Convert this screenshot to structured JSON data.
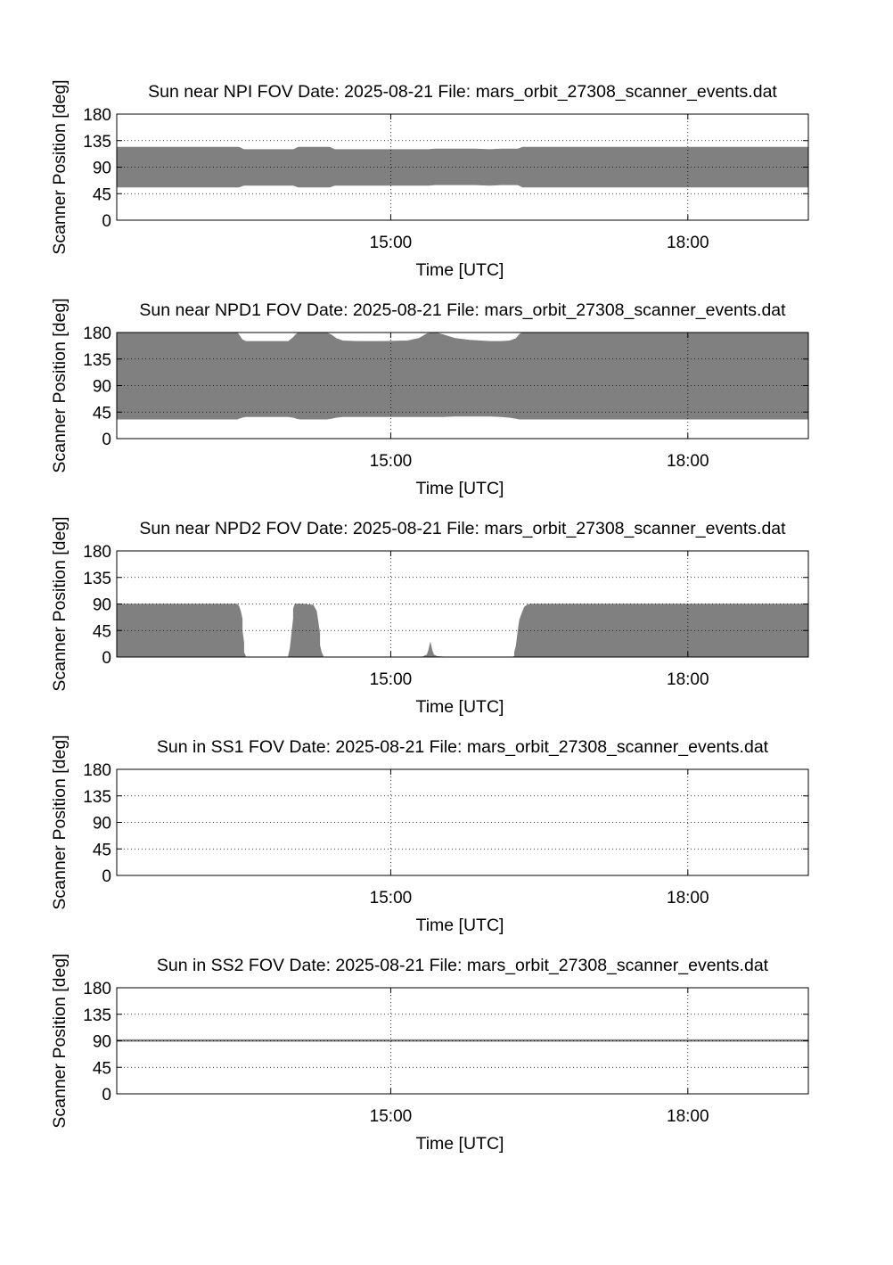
{
  "style": {
    "fill_color": "#808080",
    "axis_color": "#000000",
    "grid_color": "#000000",
    "background": "#ffffff"
  },
  "chart_data": [
    {
      "type": "area",
      "title": "Sun near NPI FOV   Date: 2025-08-21   File: mars_orbit_27308_scanner_events.dat",
      "xlabel": "Time [UTC]",
      "ylabel": "Scanner Position [deg]",
      "xlim": [
        "12:14",
        "19:13"
      ],
      "ylim": [
        0,
        180
      ],
      "yticks": [
        "0",
        "45",
        "90",
        "135",
        "180"
      ],
      "xticks": [
        {
          "label": "15:00",
          "value": "15:00"
        },
        {
          "label": "18:00",
          "value": "18:00"
        }
      ],
      "grid": true,
      "series": [
        {
          "x": [
            "12:14",
            "13:28",
            "13:31",
            "14:01",
            "14:04",
            "14:23",
            "14:26",
            "15:23",
            "15:27",
            "15:51",
            "16:00",
            "16:07",
            "16:17",
            "16:20",
            "19:13"
          ],
          "low": [
            56,
            56,
            59,
            59,
            56,
            56,
            59,
            59,
            60,
            60,
            59,
            60,
            60,
            56,
            56
          ],
          "high": [
            124,
            124,
            120,
            120,
            124,
            124,
            120,
            120,
            121,
            121,
            120,
            121,
            121,
            124,
            124
          ]
        }
      ]
    },
    {
      "type": "area",
      "title": "Sun near NPD1 FOV   Date: 2025-08-21   File: mars_orbit_27308_scanner_events.dat",
      "xlabel": "Time [UTC]",
      "ylabel": "Scanner Position [deg]",
      "xlim": [
        "12:14",
        "19:13"
      ],
      "ylim": [
        0,
        180
      ],
      "yticks": [
        "0",
        "45",
        "90",
        "135",
        "180"
      ],
      "xticks": [
        {
          "label": "15:00",
          "value": "15:00"
        },
        {
          "label": "18:00",
          "value": "18:00"
        }
      ],
      "grid": true,
      "series": [
        {
          "x": [
            "12:14",
            "13:27",
            "13:28",
            "13:30",
            "13:32",
            "13:58",
            "14:01",
            "14:03",
            "14:05",
            "14:07",
            "14:16",
            "14:21",
            "14:24",
            "14:27",
            "14:31",
            "14:40",
            "14:55",
            "15:10",
            "15:17",
            "15:22",
            "15:27",
            "15:32",
            "15:39",
            "15:48",
            "16:00",
            "16:07",
            "16:12",
            "16:16",
            "16:18",
            "16:20",
            "19:13"
          ],
          "low": [
            33,
            33,
            34,
            36,
            37,
            37,
            36,
            34,
            33,
            33,
            33,
            33,
            34,
            36,
            37,
            37,
            37,
            37,
            37,
            37,
            37,
            37,
            38,
            38,
            38,
            37,
            36,
            34,
            33,
            33,
            33
          ],
          "high": [
            180,
            180,
            176,
            168,
            165,
            165,
            172,
            178,
            180,
            180,
            180,
            180,
            176,
            170,
            166,
            165,
            165,
            166,
            170,
            178,
            180,
            176,
            170,
            167,
            165,
            165,
            166,
            170,
            177,
            180,
            180
          ]
        }
      ]
    },
    {
      "type": "area",
      "title": "Sun near NPD2 FOV   Date: 2025-08-21   File: mars_orbit_27308_scanner_events.dat",
      "xlabel": "Time [UTC]",
      "ylabel": "Scanner Position [deg]",
      "xlim": [
        "12:14",
        "19:13"
      ],
      "ylim": [
        0,
        180
      ],
      "yticks": [
        "0",
        "45",
        "90",
        "135",
        "180"
      ],
      "xticks": [
        {
          "label": "15:00",
          "value": "15:00"
        },
        {
          "label": "18:00",
          "value": "18:00"
        }
      ],
      "grid": true,
      "series": [
        {
          "x": [
            "12:14",
            "13:27",
            "13:28",
            "13:29",
            "13:30",
            "13:30",
            "13:31",
            "13:31",
            "13:32",
            "13:32",
            "13:58",
            "13:58",
            "13:59",
            "14:00",
            "14:01",
            "14:01",
            "14:02",
            "14:05",
            "14:07",
            "14:13",
            "14:15",
            "14:16",
            "14:17",
            "14:17",
            "14:18",
            "14:19",
            "14:19",
            "15:19",
            "15:22",
            "15:23",
            "15:24",
            "15:25",
            "15:26",
            "15:28",
            "15:34",
            "16:14",
            "16:15",
            "16:15",
            "16:16",
            "16:17",
            "16:18",
            "16:20",
            "16:21",
            "16:23",
            "16:25",
            "19:13"
          ],
          "low": [
            0,
            0,
            0,
            0,
            0,
            0,
            0,
            0,
            0,
            0,
            0,
            0,
            0,
            0,
            0,
            0,
            0,
            0,
            0,
            0,
            0,
            0,
            0,
            0,
            0,
            0,
            0,
            0,
            0,
            0,
            0,
            0,
            0,
            0,
            0,
            0,
            0,
            0,
            0,
            0,
            0,
            0,
            0,
            0,
            0,
            0
          ],
          "high": [
            90,
            90,
            86,
            78,
            65,
            45,
            25,
            8,
            2,
            0,
            0,
            2,
            15,
            40,
            65,
            82,
            90,
            90,
            90,
            88,
            78,
            60,
            40,
            20,
            8,
            2,
            0,
            0,
            4,
            12,
            25,
            12,
            4,
            1,
            0,
            0,
            2,
            8,
            20,
            42,
            63,
            78,
            85,
            89,
            90,
            90
          ]
        }
      ]
    },
    {
      "type": "area",
      "title": "Sun in SS1 FOV   Date: 2025-08-21   File: mars_orbit_27308_scanner_events.dat",
      "xlabel": "Time [UTC]",
      "ylabel": "Scanner Position [deg]",
      "xlim": [
        "12:14",
        "19:13"
      ],
      "ylim": [
        0,
        180
      ],
      "yticks": [
        "0",
        "45",
        "90",
        "135",
        "180"
      ],
      "xticks": [
        {
          "label": "15:00",
          "value": "15:00"
        },
        {
          "label": "18:00",
          "value": "18:00"
        }
      ],
      "grid": true,
      "series": []
    },
    {
      "type": "area",
      "title": "Sun in SS2 FOV   Date: 2025-08-21   File: mars_orbit_27308_scanner_events.dat",
      "xlabel": "Time [UTC]",
      "ylabel": "Scanner Position [deg]",
      "xlim": [
        "12:14",
        "19:13"
      ],
      "ylim": [
        0,
        180
      ],
      "yticks": [
        "0",
        "45",
        "90",
        "135",
        "180"
      ],
      "xticks": [
        {
          "label": "15:00",
          "value": "15:00"
        },
        {
          "label": "18:00",
          "value": "18:00"
        }
      ],
      "grid": true,
      "series": [
        {
          "x": [
            "12:14",
            "19:13"
          ],
          "low": [
            89,
            89
          ],
          "high": [
            92,
            92
          ]
        }
      ]
    }
  ]
}
